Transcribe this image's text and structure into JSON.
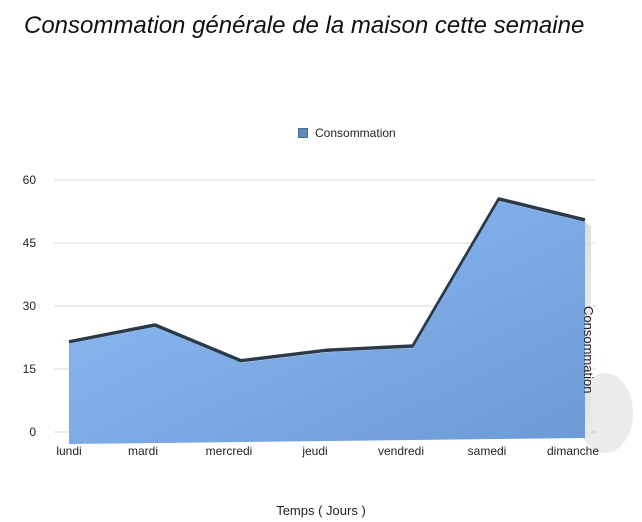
{
  "chart_data": {
    "type": "area",
    "title": "Consommation générale de la maison cette semaine",
    "xlabel": "Temps ( Jours )",
    "ylabel": "Consommation",
    "categories": [
      "lundi",
      "mardi",
      "mercredi",
      "jeudi",
      "vendredi",
      "samedi",
      "dimanche"
    ],
    "series": [
      {
        "name": "Consommation",
        "values": [
          21,
          25,
          16.5,
          19,
          20,
          55,
          50
        ]
      }
    ],
    "ylim": [
      0,
      60
    ],
    "yticks": [
      0,
      15,
      30,
      45,
      60
    ],
    "grid": true,
    "legend": "top-center",
    "colors": {
      "fill_light": "#8fbdf5",
      "fill_dark": "#6c9ad6",
      "edge": "#2b3a4a",
      "grid": "#d8d8d8"
    }
  }
}
